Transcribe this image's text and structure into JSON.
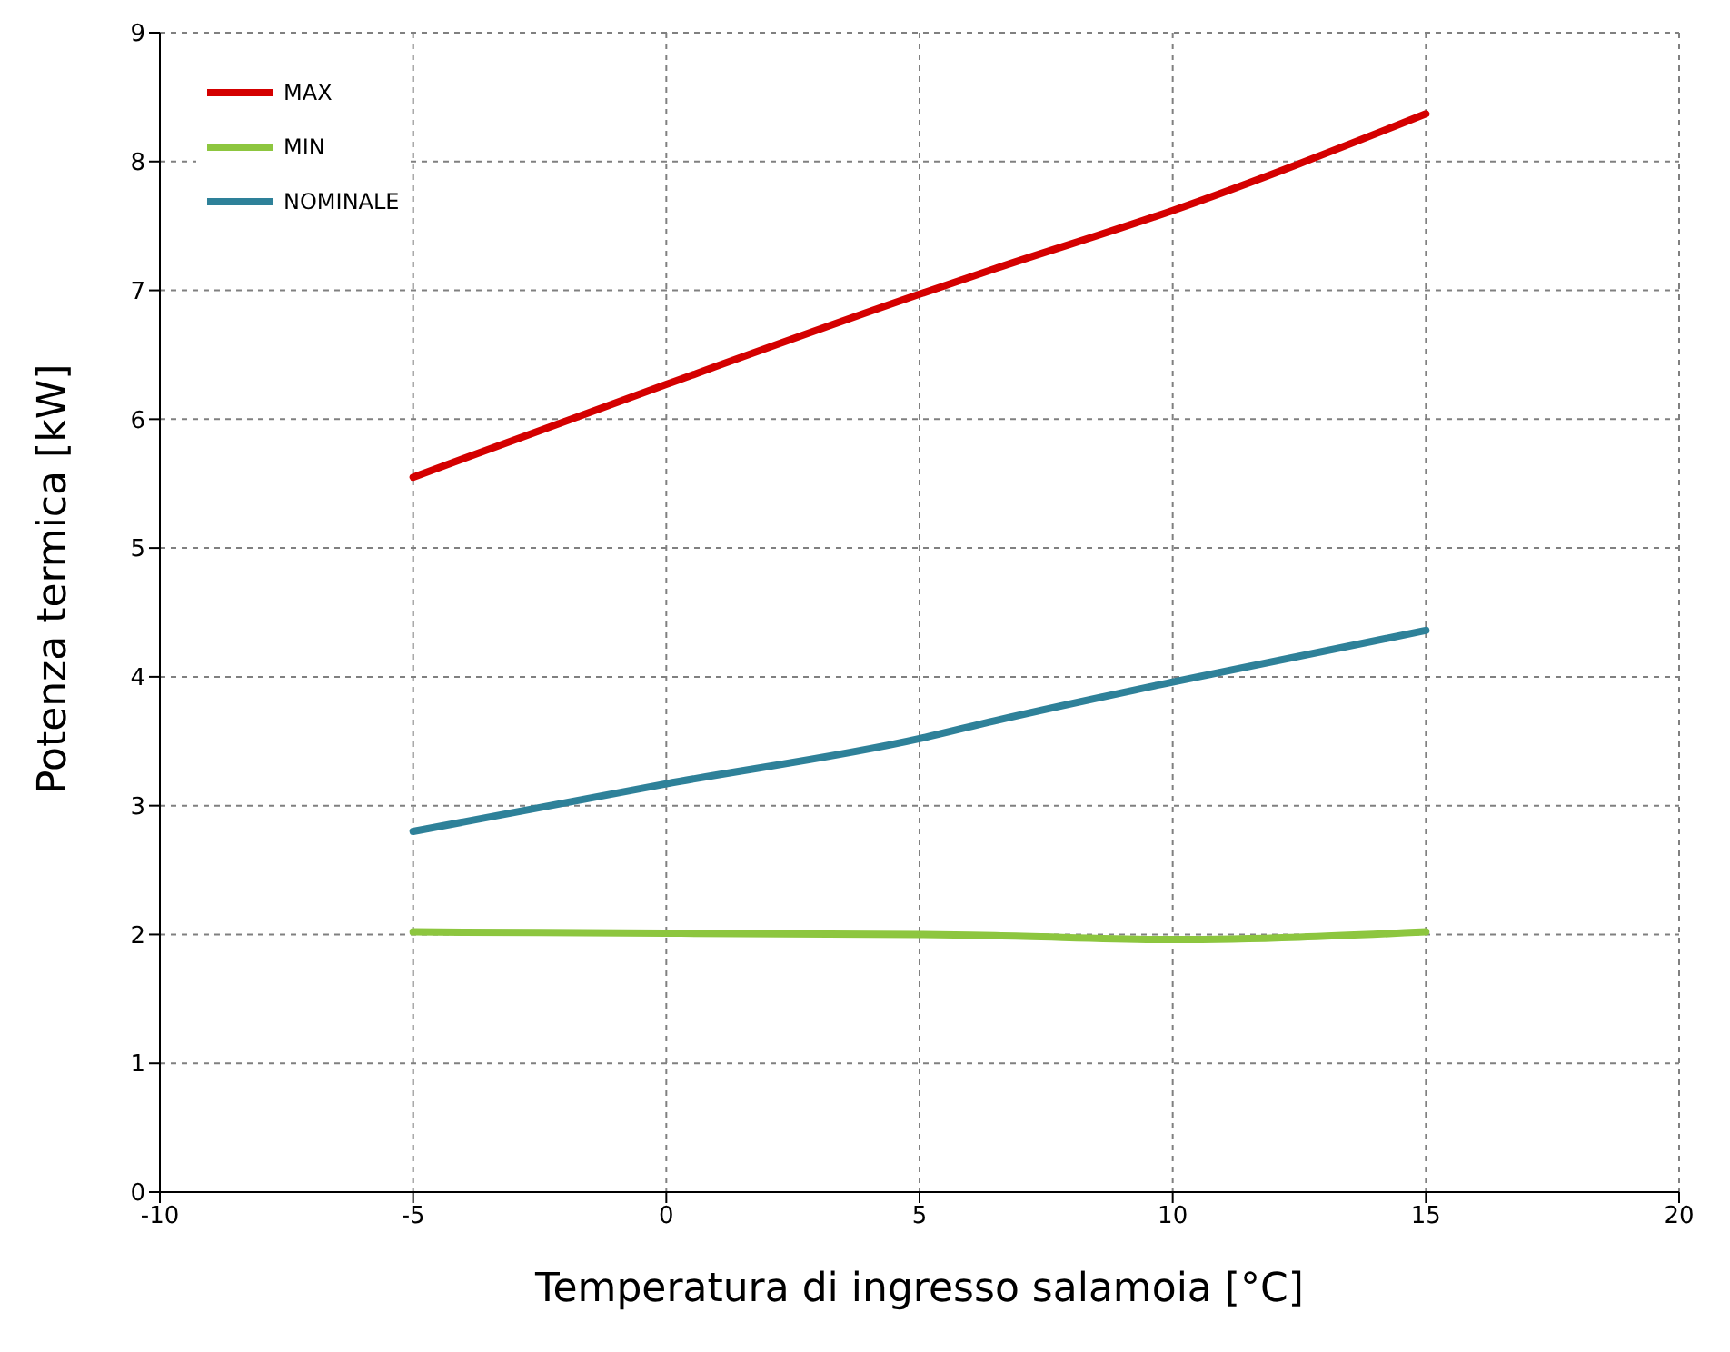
{
  "chart_data": {
    "type": "line",
    "xlabel": "Temperatura di ingresso salamoia [°C]",
    "ylabel": "Potenza termica [kW]",
    "x": [
      -5,
      0,
      5,
      6.5,
      10,
      15
    ],
    "series": [
      {
        "name": "MAX",
        "color": "#d40000",
        "values": [
          5.55,
          6.27,
          6.97,
          7.17,
          7.62,
          8.37
        ]
      },
      {
        "name": "MIN",
        "color": "#8dc63f",
        "values": [
          2.02,
          2.01,
          2.0,
          1.99,
          1.96,
          2.02
        ]
      },
      {
        "name": "NOMINALE",
        "color": "#2e8199",
        "values": [
          2.8,
          3.17,
          3.52,
          3.66,
          3.96,
          4.36
        ]
      }
    ],
    "xlim": [
      -10,
      20
    ],
    "xticks": [
      -10,
      -5,
      0,
      5,
      10,
      15,
      20
    ],
    "ylim": [
      0,
      9
    ],
    "yticks": [
      0,
      1,
      2,
      3,
      4,
      5,
      6,
      7,
      8,
      9
    ],
    "grid": true,
    "legend": "top left",
    "marker": "none",
    "line_style": "solid"
  }
}
